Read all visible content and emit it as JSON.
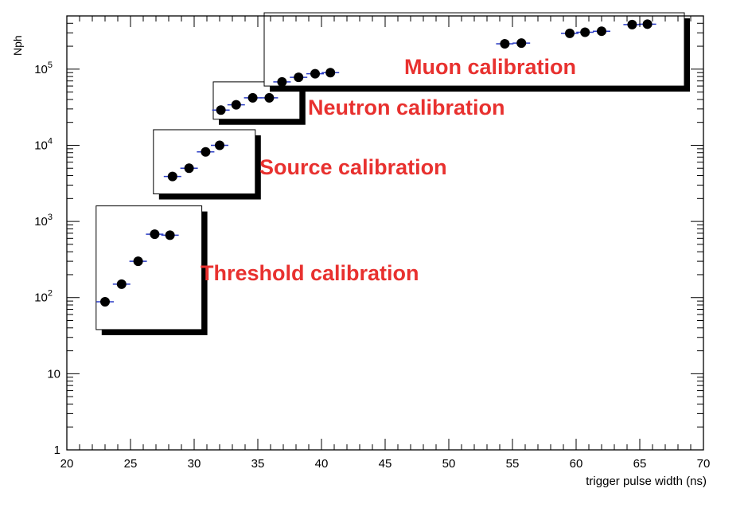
{
  "chart_data": {
    "type": "scatter",
    "xlabel": "trigger pulse width (ns)",
    "ylabel": "Nph",
    "xlim": [
      20,
      70
    ],
    "ylim": [
      1,
      500000
    ],
    "yscale": "log",
    "grid": false,
    "legend": "none",
    "x_ticks": [
      "20",
      "25",
      "30",
      "35",
      "40",
      "45",
      "50",
      "55",
      "60",
      "65",
      "70"
    ],
    "y_ticks": [
      {
        "value": 1,
        "base": "1",
        "exp": ""
      },
      {
        "value": 10,
        "base": "10",
        "exp": ""
      },
      {
        "value": 100,
        "base": "10",
        "exp": "2"
      },
      {
        "value": 1000,
        "base": "10",
        "exp": "3"
      },
      {
        "value": 10000,
        "base": "10",
        "exp": "4"
      },
      {
        "value": 100000,
        "base": "10",
        "exp": "5"
      }
    ],
    "points": [
      {
        "x": 23.0,
        "y": 88
      },
      {
        "x": 24.3,
        "y": 150
      },
      {
        "x": 25.6,
        "y": 300
      },
      {
        "x": 26.9,
        "y": 680
      },
      {
        "x": 28.1,
        "y": 660
      },
      {
        "x": 28.3,
        "y": 3900
      },
      {
        "x": 29.6,
        "y": 5000
      },
      {
        "x": 30.9,
        "y": 8200
      },
      {
        "x": 32.0,
        "y": 10000
      },
      {
        "x": 32.1,
        "y": 29000
      },
      {
        "x": 33.3,
        "y": 34000
      },
      {
        "x": 34.6,
        "y": 42000
      },
      {
        "x": 35.9,
        "y": 42000
      },
      {
        "x": 36.9,
        "y": 68000
      },
      {
        "x": 38.2,
        "y": 78000
      },
      {
        "x": 39.5,
        "y": 87000
      },
      {
        "x": 40.7,
        "y": 90000
      },
      {
        "x": 54.4,
        "y": 215000
      },
      {
        "x": 55.7,
        "y": 220000
      },
      {
        "x": 59.5,
        "y": 295000
      },
      {
        "x": 60.7,
        "y": 305000
      },
      {
        "x": 62.0,
        "y": 315000
      },
      {
        "x": 64.4,
        "y": 385000
      },
      {
        "x": 65.6,
        "y": 390000
      }
    ],
    "annotations": [
      {
        "text": "Threshold calibration",
        "color": "#e8312f",
        "box": {
          "x": [
            22.3,
            30.6
          ],
          "y": [
            38,
            1600
          ]
        }
      },
      {
        "text": "Source calibration",
        "color": "#e8312f",
        "box": {
          "x": [
            26.8,
            34.8
          ],
          "y": 2300,
          "y2": 16000
        }
      },
      {
        "text": "Neutron calibration",
        "color": "#e8312f",
        "box": {
          "x": [
            31.5,
            38.3
          ],
          "y": [
            22000,
            68000
          ]
        }
      },
      {
        "text": "Muon calibration",
        "color": "#e8312f",
        "box": {
          "x": [
            35.5,
            68.5
          ],
          "y": [
            60000,
            550000
          ]
        }
      }
    ]
  }
}
